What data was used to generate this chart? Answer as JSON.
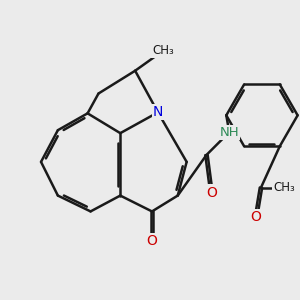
{
  "background_color": "#ebebeb",
  "bond_color": "#1a1a1a",
  "bond_width": 1.8,
  "figsize": [
    3.0,
    3.0
  ],
  "dpi": 100,
  "atom_colors": {
    "N": "#0000dd",
    "O": "#cc0000",
    "NH": "#2e8b57",
    "C": "#1a1a1a"
  }
}
